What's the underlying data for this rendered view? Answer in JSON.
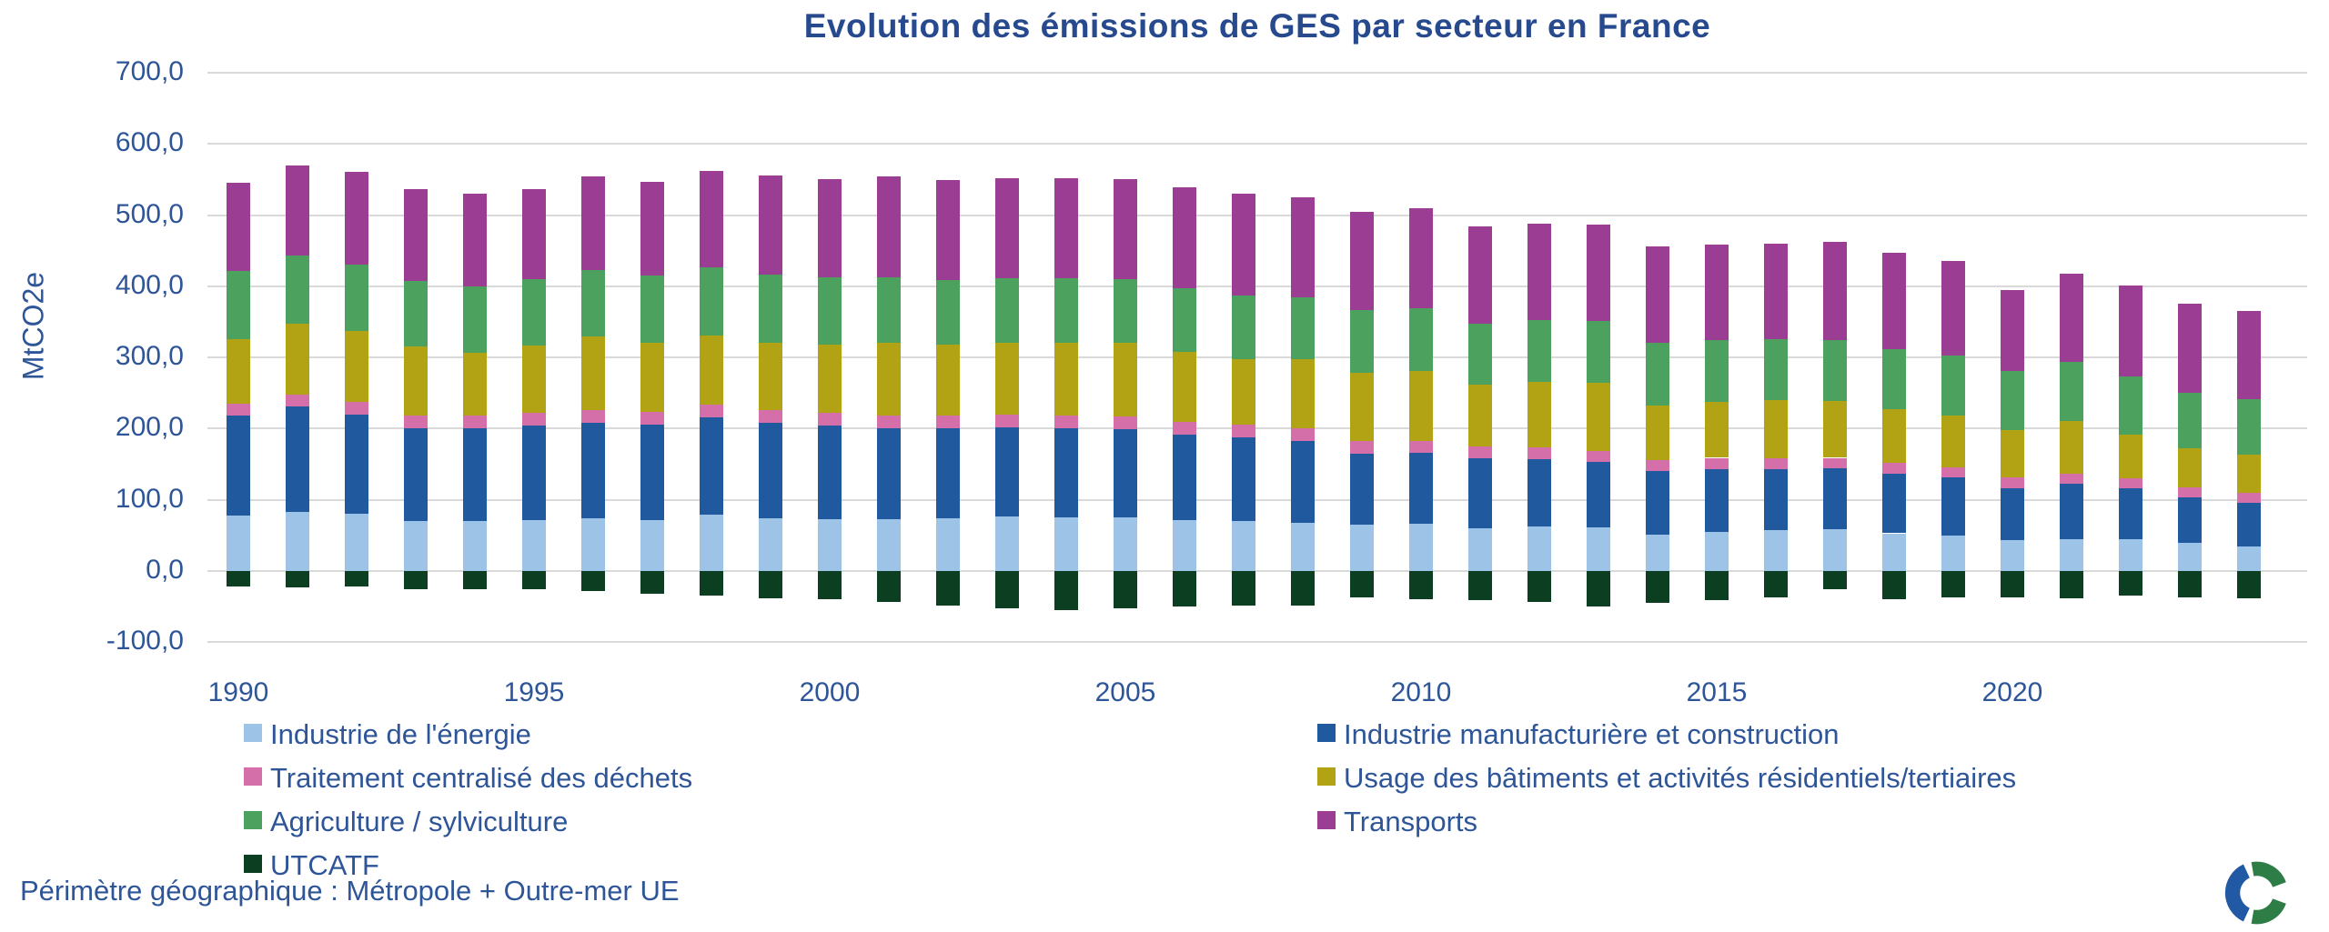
{
  "title": "Evolution des émissions de GES par secteur en France",
  "y_axis": {
    "label": "MtCO2e",
    "max": 700,
    "min": -100,
    "step": 100,
    "tick_labels": [
      "700,0",
      "600,0",
      "500,0",
      "400,0",
      "300,0",
      "200,0",
      "100,0",
      "0,0",
      "-100,0"
    ]
  },
  "x_axis": {
    "tick_labels": [
      "1990",
      "1995",
      "2000",
      "2005",
      "2010",
      "2015",
      "2020"
    ],
    "tick_years": [
      1990,
      1995,
      2000,
      2005,
      2010,
      2015,
      2020
    ]
  },
  "footer": "Périmètre géographique : Métropole + Outre-mer UE",
  "legend": {
    "left_column": [
      "Industrie de l'énergie",
      "Traitement centralisé des déchets",
      "Agriculture / sylviculture",
      "UTCATF"
    ],
    "right_column": [
      "Industrie manufacturière et construction",
      "Usage des bâtiments et activités résidentiels/tertiaires",
      "Transports"
    ]
  },
  "colors": {
    "title_text": "#27498D",
    "axis_text": "#2E5597",
    "gridline": "#D9D9D9",
    "background": "#FFFFFF",
    "logo_green": "#2E7D46",
    "logo_blue": "#2159A5"
  },
  "chart_data": {
    "type": "bar",
    "stacked": true,
    "title": "Evolution des émissions de GES par secteur en France",
    "xlabel": "",
    "ylabel": "MtCO2e",
    "ylim": [
      -100,
      700
    ],
    "grid": true,
    "legend_position": "bottom",
    "unit": "MtCO2e",
    "years": [
      1990,
      1991,
      1992,
      1993,
      1994,
      1995,
      1996,
      1997,
      1998,
      1999,
      2000,
      2001,
      2002,
      2003,
      2004,
      2005,
      2006,
      2007,
      2008,
      2009,
      2010,
      2011,
      2012,
      2013,
      2014,
      2015,
      2016,
      2017,
      2018,
      2019,
      2020,
      2021,
      2022,
      2023,
      2024
    ],
    "series": [
      {
        "name": "Industrie de l'énergie",
        "color": "#9DC3E6",
        "values": [
          78,
          83,
          80,
          70,
          70,
          71,
          74,
          71,
          79,
          74,
          73,
          73,
          74,
          76,
          75,
          75,
          72,
          70,
          68,
          65,
          66,
          60,
          62,
          61,
          51,
          55,
          57,
          59,
          53,
          50,
          43,
          45,
          45,
          39,
          35
        ]
      },
      {
        "name": "Industrie manufacturière et construction",
        "color": "#21599F",
        "values": [
          140,
          148,
          140,
          130,
          131,
          133,
          134,
          135,
          137,
          134,
          131,
          128,
          126,
          126,
          125,
          124,
          120,
          118,
          115,
          100,
          100,
          98,
          95,
          92,
          89,
          88,
          86,
          85,
          84,
          81,
          73,
          77,
          71,
          64,
          61
        ]
      },
      {
        "name": "Traitement centralisé des déchets",
        "color": "#D56FA9",
        "values": [
          17,
          17,
          18,
          18,
          18,
          18,
          18,
          18,
          18,
          18,
          18,
          18,
          18,
          18,
          18,
          18,
          18,
          18,
          17,
          17,
          17,
          17,
          17,
          16,
          16,
          16,
          16,
          15,
          15,
          15,
          15,
          15,
          14,
          14,
          14
        ]
      },
      {
        "name": "Usage des bâtiments et activités résidentiels/tertiaires",
        "color": "#B2A315",
        "values": [
          91,
          100,
          99,
          97,
          88,
          95,
          103,
          96,
          97,
          95,
          96,
          101,
          100,
          101,
          102,
          103,
          98,
          92,
          97,
          97,
          98,
          87,
          92,
          95,
          77,
          79,
          81,
          80,
          75,
          73,
          67,
          74,
          62,
          55,
          54
        ]
      },
      {
        "name": "Agriculture / sylviculture",
        "color": "#4DA15F",
        "values": [
          96,
          95,
          94,
          92,
          93,
          93,
          94,
          95,
          95,
          95,
          94,
          93,
          91,
          90,
          91,
          90,
          89,
          89,
          88,
          87,
          88,
          86,
          86,
          87,
          87,
          87,
          86,
          86,
          85,
          84,
          83,
          83,
          81,
          78,
          77
        ]
      },
      {
        "name": "Transports",
        "color": "#9B3D93",
        "values": [
          123,
          127,
          130,
          130,
          130,
          127,
          131,
          132,
          136,
          139,
          139,
          141,
          140,
          141,
          141,
          141,
          142,
          143,
          140,
          138,
          140,
          136,
          136,
          136,
          136,
          134,
          134,
          137,
          135,
          133,
          113,
          124,
          128,
          126,
          124
        ]
      },
      {
        "name": "UTCATF",
        "color": "#0C3F22",
        "values": [
          -22,
          -23,
          -22,
          -25,
          -25,
          -26,
          -28,
          -32,
          -35,
          -38,
          -40,
          -44,
          -49,
          -52,
          -55,
          -53,
          -50,
          -48,
          -49,
          -37,
          -39,
          -41,
          -44,
          -50,
          -45,
          -41,
          -37,
          -26,
          -40,
          -37,
          -37,
          -38,
          -34,
          -37,
          -38
        ]
      }
    ]
  }
}
